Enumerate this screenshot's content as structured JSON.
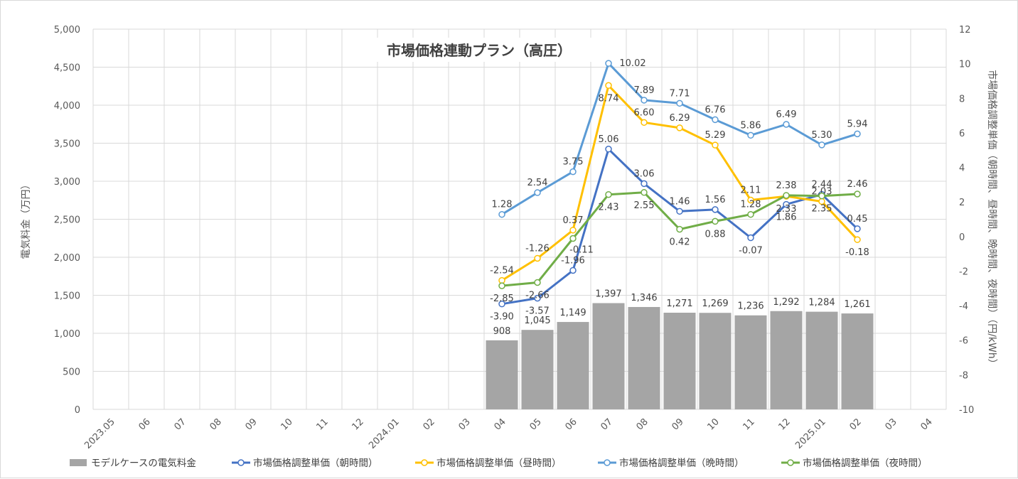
{
  "chart_data": {
    "type": "bar+line",
    "title": "市場価格連動プラン（高圧）",
    "categories": [
      "2023.05",
      "06",
      "07",
      "08",
      "09",
      "10",
      "11",
      "12",
      "2024.01",
      "02",
      "03",
      "04",
      "05",
      "06",
      "07",
      "08",
      "09",
      "10",
      "11",
      "12",
      "2025.01",
      "02",
      "03",
      "04"
    ],
    "y_left": {
      "label": "電気料金（万円）",
      "min": 0,
      "max": 5000,
      "step": 500,
      "ticks": [
        "0",
        "500",
        "1,000",
        "1,500",
        "2,000",
        "2,500",
        "3,000",
        "3,500",
        "4,000",
        "4,500",
        "5,000"
      ]
    },
    "y_right": {
      "label": "市場価格調整単価（朝時間、昼時間、晩時間、夜時間）（円/kWh）",
      "min": -10,
      "max": 12,
      "step": 2,
      "ticks": [
        "-10",
        "-8",
        "-6",
        "-4",
        "-2",
        "0",
        "2",
        "4",
        "6",
        "8",
        "10",
        "12"
      ]
    },
    "bars": {
      "name": "モデルケースの電気料金",
      "color": "#a5a5a5",
      "values": [
        null,
        null,
        null,
        null,
        null,
        null,
        null,
        null,
        null,
        null,
        null,
        908,
        1045,
        1149,
        1397,
        1346,
        1271,
        1269,
        1236,
        1292,
        1284,
        1261,
        null,
        null
      ],
      "labels": [
        "",
        "",
        "",
        "",
        "",
        "",
        "",
        "",
        "",
        "",
        "",
        "908",
        "1,045",
        "1,149",
        "1,397",
        "1,346",
        "1,271",
        "1,269",
        "1,236",
        "1,292",
        "1,284",
        "1,261",
        "",
        ""
      ]
    },
    "series": [
      {
        "name": "市場価格調整単価（朝時間）",
        "color": "#4472c4",
        "values": [
          null,
          null,
          null,
          null,
          null,
          null,
          null,
          null,
          null,
          null,
          null,
          -3.9,
          -3.57,
          -1.96,
          5.06,
          3.06,
          1.46,
          1.56,
          -0.07,
          1.86,
          2.44,
          0.45,
          null,
          null
        ],
        "labels": [
          "",
          "",
          "",
          "",
          "",
          "",
          "",
          "",
          "",
          "",
          "",
          "-3.90",
          "-3.57",
          "-1.96",
          "5.06",
          "3.06",
          "1.46",
          "1.56",
          "-0.07",
          "1.86",
          "2.44",
          "0.45",
          "",
          ""
        ]
      },
      {
        "name": "市場価格調整単価（昼時間）",
        "color": "#ffc000",
        "values": [
          null,
          null,
          null,
          null,
          null,
          null,
          null,
          null,
          null,
          null,
          null,
          -2.54,
          -1.26,
          0.37,
          8.74,
          6.6,
          6.29,
          5.29,
          2.11,
          2.33,
          2.03,
          -0.18,
          null,
          null
        ],
        "labels": [
          "",
          "",
          "",
          "",
          "",
          "",
          "",
          "",
          "",
          "",
          "",
          "-2.54",
          "-1.26",
          "0.37",
          "8.74",
          "6.60",
          "6.29",
          "5.29",
          "2.11",
          "2.33",
          "2.03",
          "-0.18",
          "",
          ""
        ]
      },
      {
        "name": "市場価格調整単価（晩時間）",
        "color": "#5b9bd5",
        "values": [
          null,
          null,
          null,
          null,
          null,
          null,
          null,
          null,
          null,
          null,
          null,
          1.28,
          2.54,
          3.75,
          10.02,
          7.89,
          7.71,
          6.76,
          5.86,
          6.49,
          5.3,
          5.94,
          null,
          null
        ],
        "labels": [
          "",
          "",
          "",
          "",
          "",
          "",
          "",
          "",
          "",
          "",
          "",
          "1.28",
          "2.54",
          "3.75",
          "10.02",
          "7.89",
          "7.71",
          "6.76",
          "5.86",
          "6.49",
          "5.30",
          "5.94",
          "",
          ""
        ]
      },
      {
        "name": "市場価格調整単価（夜時間）",
        "color": "#70ad47",
        "values": [
          null,
          null,
          null,
          null,
          null,
          null,
          null,
          null,
          null,
          null,
          null,
          -2.85,
          -2.66,
          -0.11,
          2.43,
          2.55,
          0.42,
          0.88,
          1.28,
          2.38,
          2.35,
          2.46,
          null,
          null
        ],
        "labels": [
          "",
          "",
          "",
          "",
          "",
          "",
          "",
          "",
          "",
          "",
          "",
          "-2.85",
          "-2.66",
          "-0.11",
          "2.43",
          "2.55",
          "0.42",
          "0.88",
          "1.28",
          "2.38",
          "2.35",
          "2.46",
          "",
          ""
        ]
      }
    ],
    "grid": true,
    "legend_position": "bottom"
  }
}
